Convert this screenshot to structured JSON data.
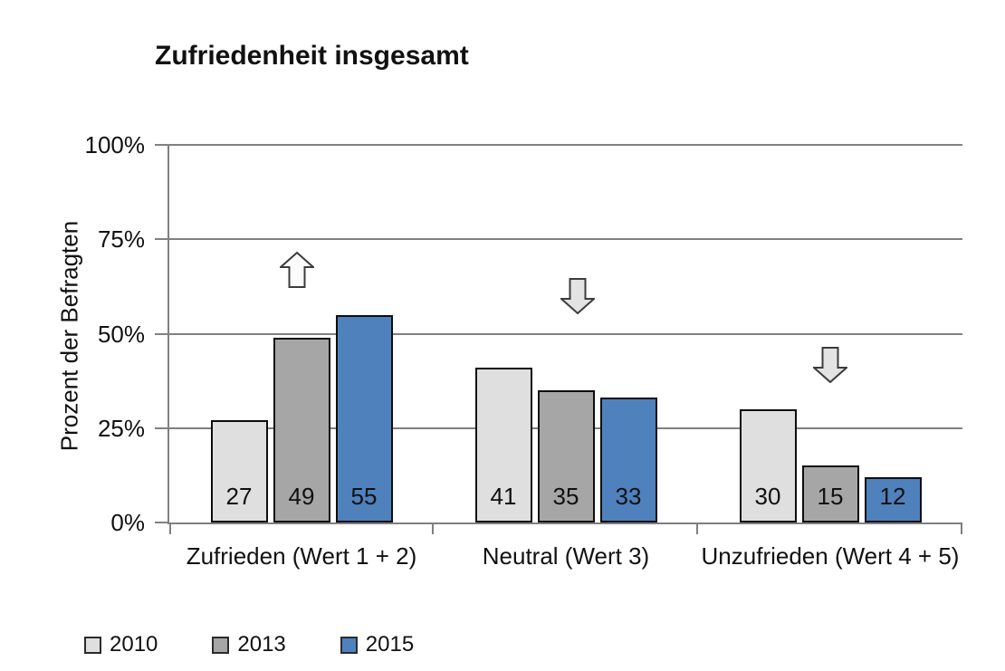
{
  "chart_data": {
    "type": "bar",
    "title": "Zufriedenheit insgesamt",
    "xlabel": "",
    "ylabel": "Prozent der Befragten",
    "categories": [
      "Zufrieden (Wert 1 + 2)",
      "Neutral (Wert 3)",
      "Unzufrieden (Wert 4 + 5)"
    ],
    "series": [
      {
        "name": "2010",
        "color": "#DFDFDF",
        "values": [
          27,
          41,
          30
        ]
      },
      {
        "name": "2013",
        "color": "#A6A6A6",
        "values": [
          49,
          35,
          15
        ]
      },
      {
        "name": "2015",
        "color": "#4F81BD",
        "values": [
          55,
          33,
          12
        ]
      }
    ],
    "ylim": [
      0,
      100
    ],
    "yticks": [
      {
        "value": 0,
        "label": "0%"
      },
      {
        "value": 25,
        "label": "25%"
      },
      {
        "value": 50,
        "label": "50%"
      },
      {
        "value": 75,
        "label": "75%"
      },
      {
        "value": 100,
        "label": "100%"
      }
    ],
    "grid": true,
    "legend_position": "bottom",
    "bar_labels_shown": true,
    "annotations": [
      {
        "icon": "up-arrow",
        "group": "Zufrieden (Wert 1 + 2)"
      },
      {
        "icon": "down-arrow",
        "group": "Neutral (Wert 3)"
      },
      {
        "icon": "down-arrow",
        "group": "Unzufrieden (Wert 4 + 5)"
      }
    ]
  },
  "colors": {
    "grid": "#808080",
    "bar_border": "#0D0D0D",
    "text": "#111111",
    "arrow_up_fill": "#FBFBFB",
    "arrow_down_fill": "#E3E3E3",
    "arrow_stroke": "#3C3C3C",
    "series_2010": "#DFDFDF",
    "series_2013": "#A6A6A6",
    "series_2015": "#4F81BD"
  }
}
